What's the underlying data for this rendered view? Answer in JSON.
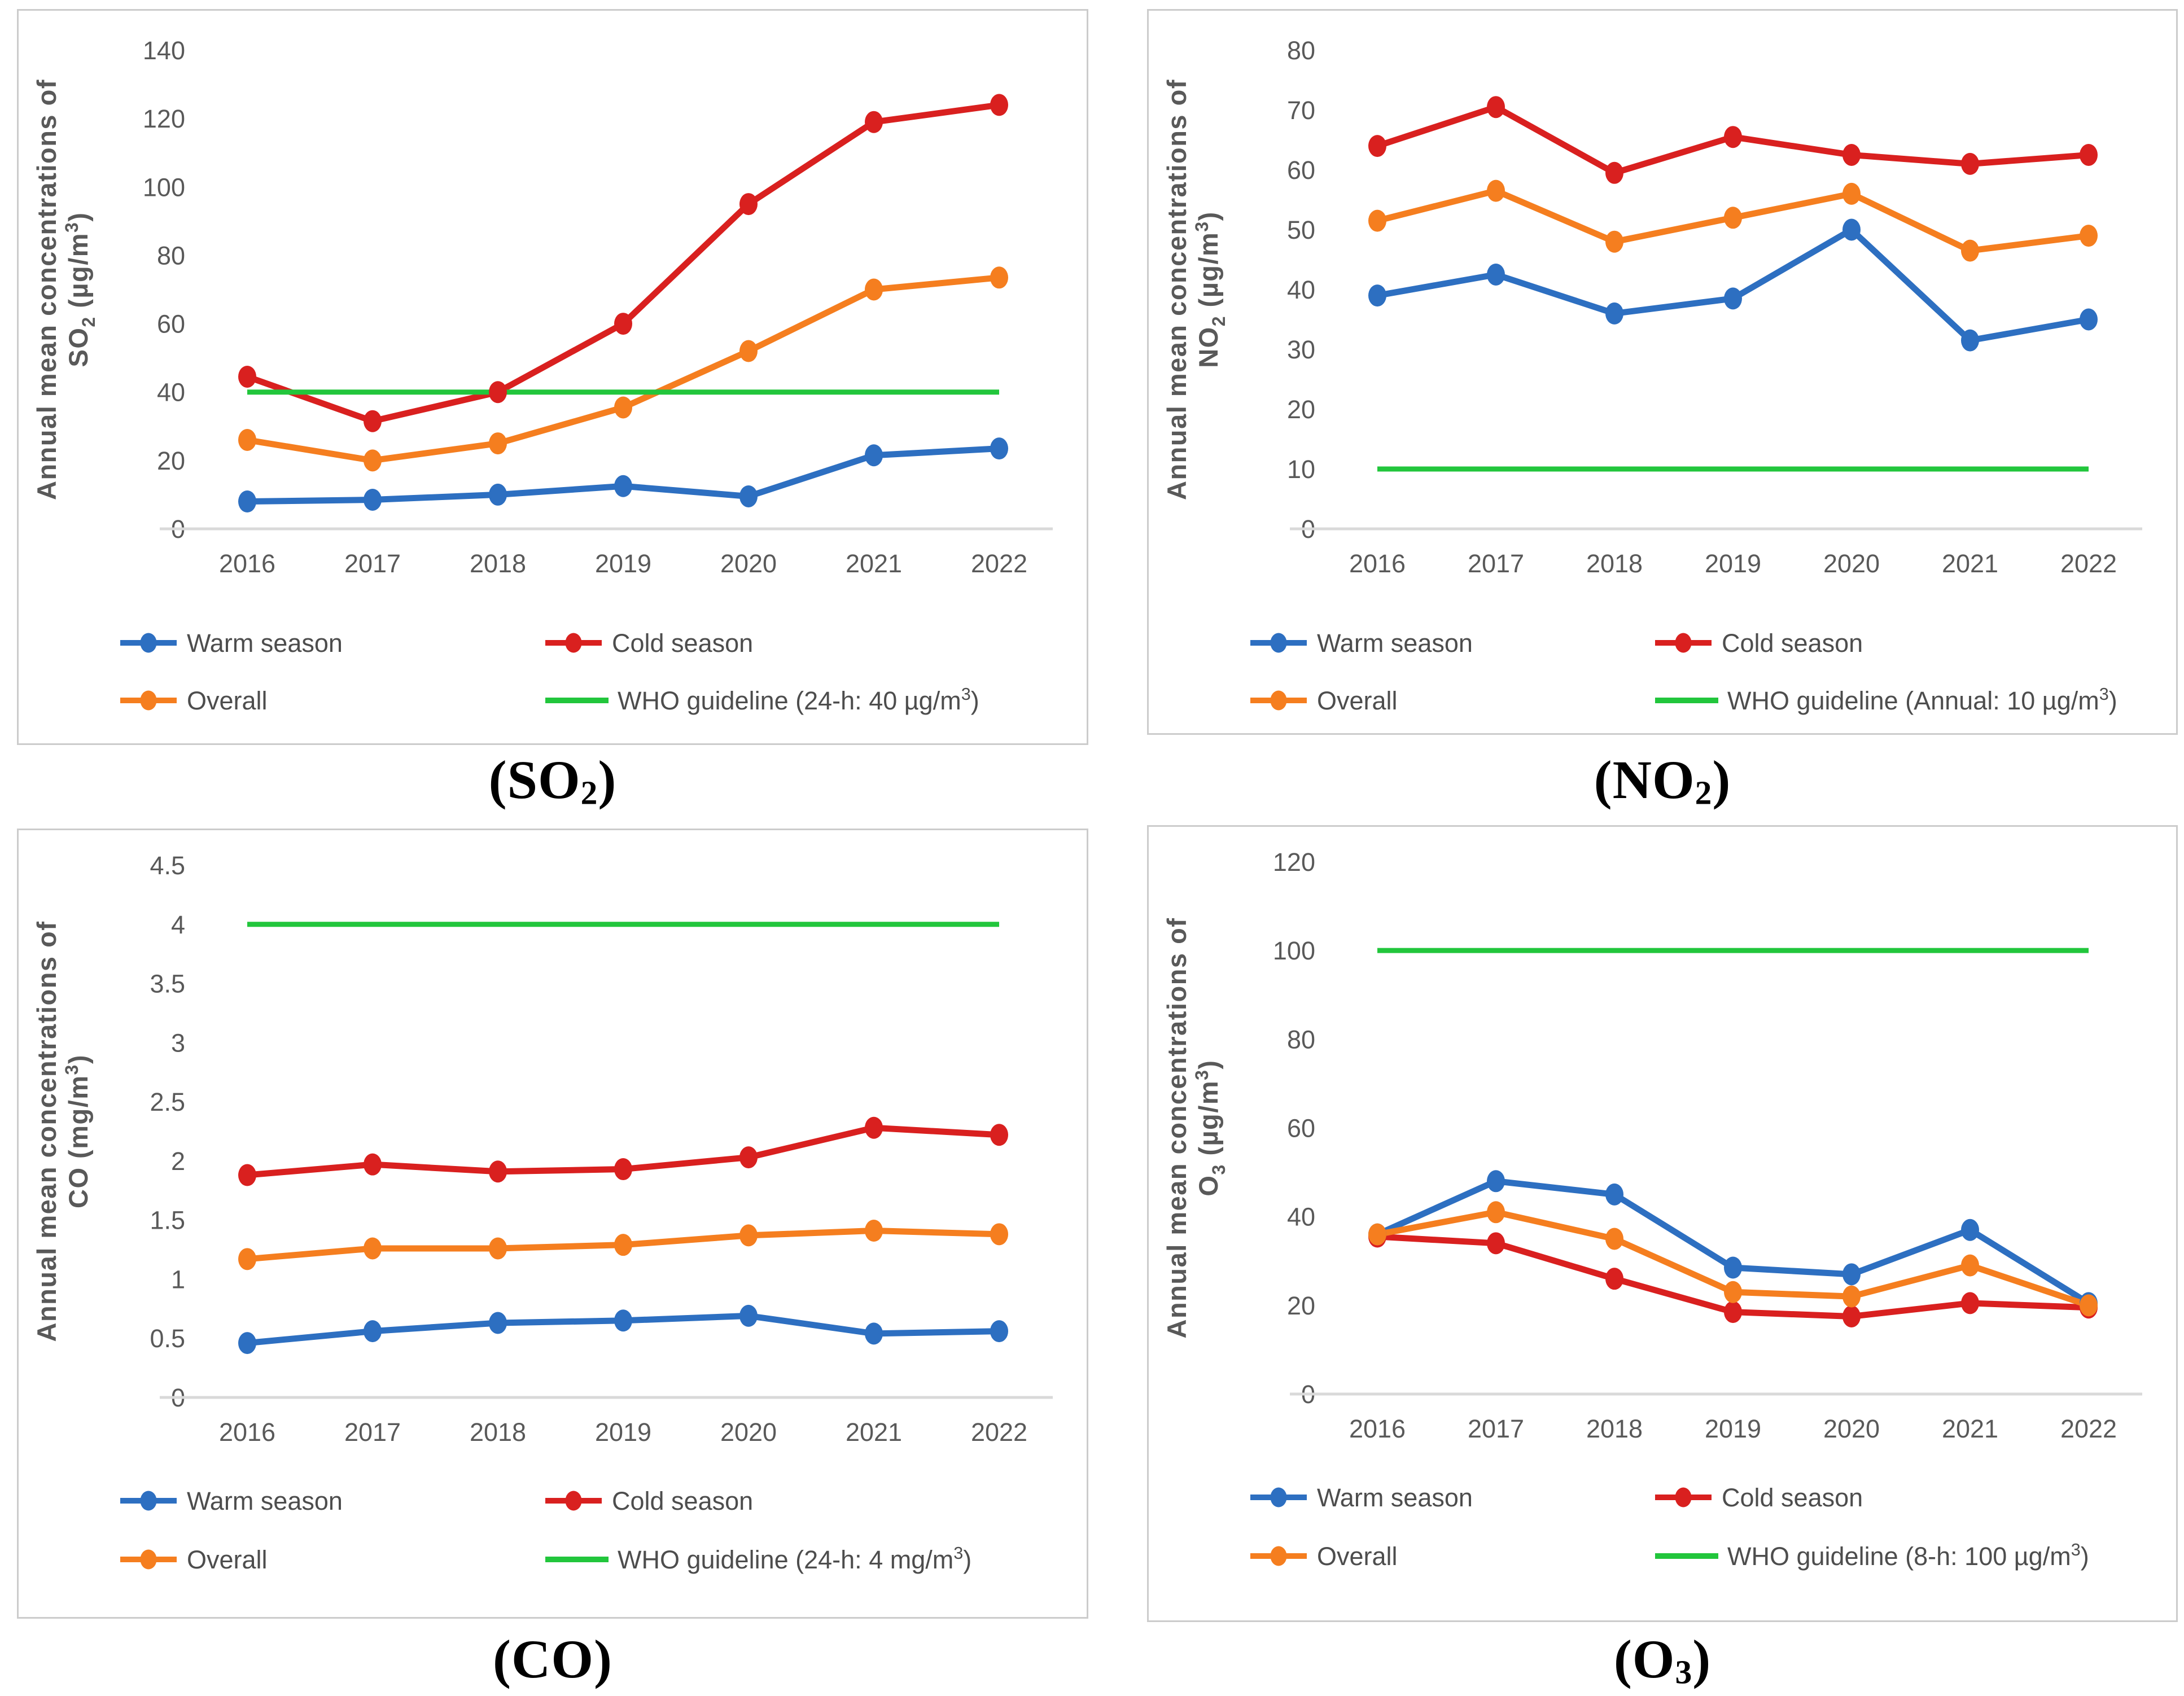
{
  "page": {
    "background": "#ffffff"
  },
  "palette": {
    "warm_season": "#2d6fc1",
    "cold_season": "#d9201f",
    "overall": "#f57e1f",
    "who_guideline": "#22c63c",
    "axis_line": "#d9d9d9",
    "tick_text": "#595959",
    "axis_title_text": "#595959",
    "legend_text": "#4d4d4d",
    "panel_border": "#cccccc",
    "caption_text": "#000000"
  },
  "chart_data": [
    {
      "id": "so2",
      "type": "line",
      "caption": "(SO₂)",
      "ylabel_line1": "Annual mean concentrations of",
      "ylabel_line2": "SO₂ (µg/m³)",
      "x_categories": [
        "2016",
        "2017",
        "2018",
        "2019",
        "2020",
        "2021",
        "2022"
      ],
      "ylim": [
        0,
        140
      ],
      "yticks": [
        "0",
        "20",
        "40",
        "60",
        "80",
        "100",
        "120",
        "140"
      ],
      "grid": false,
      "legend_position": "bottom",
      "series": [
        {
          "name": "Warm season",
          "color_key": "warm_season",
          "values": [
            8,
            8.5,
            10,
            12.5,
            9.5,
            21.5,
            23.5
          ]
        },
        {
          "name": "Cold season",
          "color_key": "cold_season",
          "values": [
            44.5,
            31.5,
            40,
            60,
            95,
            119,
            124
          ]
        },
        {
          "name": "Overall",
          "color_key": "overall",
          "values": [
            26,
            20,
            25,
            35.5,
            52,
            70,
            73.5
          ]
        }
      ],
      "guideline": {
        "name": "WHO guideline (24-h: 40 µg/m³)",
        "value": 40,
        "color_key": "who_guideline"
      }
    },
    {
      "id": "no2",
      "type": "line",
      "caption": "(NO₂)",
      "ylabel_line1": "Annual mean concentrations of",
      "ylabel_line2": "NO₂ (µg/m³)",
      "x_categories": [
        "2016",
        "2017",
        "2018",
        "2019",
        "2020",
        "2021",
        "2022"
      ],
      "ylim": [
        0,
        80
      ],
      "yticks": [
        "0",
        "10",
        "20",
        "30",
        "40",
        "50",
        "60",
        "70",
        "80"
      ],
      "grid": false,
      "legend_position": "bottom",
      "series": [
        {
          "name": "Warm season",
          "color_key": "warm_season",
          "values": [
            39,
            42.5,
            36,
            38.5,
            50,
            31.5,
            35
          ]
        },
        {
          "name": "Cold season",
          "color_key": "cold_season",
          "values": [
            64,
            70.5,
            59.5,
            65.5,
            62.5,
            61,
            62.5
          ]
        },
        {
          "name": "Overall",
          "color_key": "overall",
          "values": [
            51.5,
            56.5,
            48,
            52,
            56,
            46.5,
            49
          ]
        }
      ],
      "guideline": {
        "name": "WHO guideline (Annual: 10 µg/m³)",
        "value": 10,
        "color_key": "who_guideline"
      }
    },
    {
      "id": "co",
      "type": "line",
      "caption": "(CO)",
      "ylabel_line1": "Annual mean concentrations of",
      "ylabel_line2": "CO (mg/m³)",
      "x_categories": [
        "2016",
        "2017",
        "2018",
        "2019",
        "2020",
        "2021",
        "2022"
      ],
      "ylim": [
        0,
        4.5
      ],
      "yticks": [
        "0",
        "0.5",
        "1",
        "1.5",
        "2",
        "2.5",
        "3",
        "3.5",
        "4",
        "4.5"
      ],
      "grid": false,
      "legend_position": "bottom",
      "series": [
        {
          "name": "Warm season",
          "color_key": "warm_season",
          "values": [
            0.46,
            0.56,
            0.63,
            0.65,
            0.69,
            0.54,
            0.56
          ]
        },
        {
          "name": "Cold season",
          "color_key": "cold_season",
          "values": [
            1.88,
            1.97,
            1.91,
            1.93,
            2.03,
            2.28,
            2.22
          ]
        },
        {
          "name": "Overall",
          "color_key": "overall",
          "values": [
            1.17,
            1.26,
            1.26,
            1.29,
            1.37,
            1.41,
            1.38
          ]
        }
      ],
      "guideline": {
        "name": "WHO guideline (24-h: 4 mg/m³)",
        "value": 4,
        "color_key": "who_guideline"
      }
    },
    {
      "id": "o3",
      "type": "line",
      "caption": "(O₃)",
      "ylabel_line1": "Annual mean concentrations of",
      "ylabel_line2": "O₃ (µg/m³)",
      "x_categories": [
        "2016",
        "2017",
        "2018",
        "2019",
        "2020",
        "2021",
        "2022"
      ],
      "ylim": [
        0,
        120
      ],
      "yticks": [
        "0",
        "20",
        "40",
        "60",
        "80",
        "100",
        "120"
      ],
      "grid": false,
      "legend_position": "bottom",
      "series": [
        {
          "name": "Warm season",
          "color_key": "warm_season",
          "values": [
            36,
            48,
            45,
            28.5,
            27,
            37,
            20.5
          ]
        },
        {
          "name": "Cold season",
          "color_key": "cold_season",
          "values": [
            35.5,
            34,
            26,
            18.5,
            17.5,
            20.5,
            19.5
          ]
        },
        {
          "name": "Overall",
          "color_key": "overall",
          "values": [
            36,
            41,
            35,
            23,
            22,
            29,
            20
          ]
        }
      ],
      "guideline": {
        "name": "WHO guideline (8-h: 100 µg/m³)",
        "value": 100,
        "color_key": "who_guideline"
      }
    }
  ]
}
